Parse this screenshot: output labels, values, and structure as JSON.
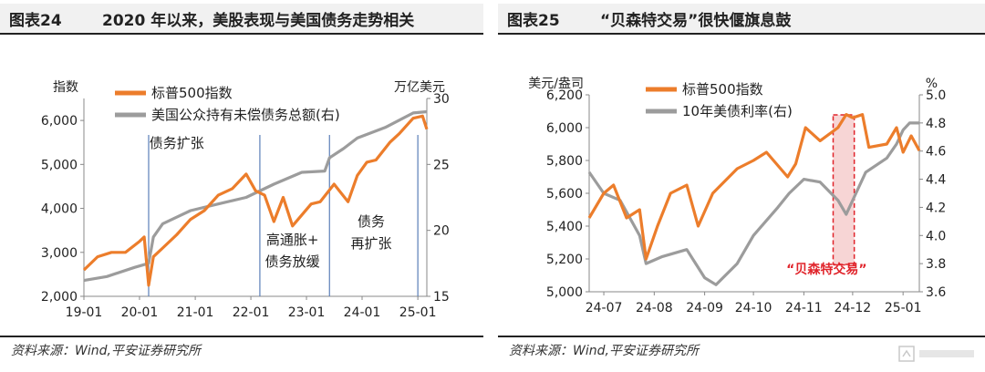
{
  "panels": [
    {
      "fig_no": "图表24",
      "title": "2020 年以来，美股表现与美国债务走势相关",
      "source": "资料来源：Wind,平安证券研究所"
    },
    {
      "fig_no": "图表25",
      "title": "“贝森特交易”很快偃旗息鼓",
      "source": "资料来源：Wind,平安证券研究所"
    }
  ],
  "colors": {
    "orange": "#ec7d2b",
    "gray": "#9c9c9c",
    "blue": "#5b7fb8",
    "red": "#e0242b",
    "highlight": "#f7d5d5"
  },
  "chart_data": [
    {
      "type": "line",
      "x_ticks": [
        "19-01",
        "20-01",
        "21-01",
        "22-01",
        "23-01",
        "24-01",
        "25-01"
      ],
      "x_range": [
        "2019-01",
        "2025-03"
      ],
      "ylabel_left": "指数",
      "ylabel_right": "万亿美元",
      "ylim_left": [
        2000,
        6500
      ],
      "yticks_left": [
        "2,000",
        "3,000",
        "4,000",
        "5,000",
        "6,000"
      ],
      "ylim_right": [
        15,
        30
      ],
      "yticks_right": [
        "15",
        "20",
        "25",
        "30"
      ],
      "legend": "top",
      "series": [
        {
          "name": "标普500指数",
          "axis": "left",
          "color": "#ec7d2b",
          "x": [
            "2019-01",
            "2019-04",
            "2019-07",
            "2019-10",
            "2020-01",
            "2020-02",
            "2020-03",
            "2020-04",
            "2020-06",
            "2020-09",
            "2020-12",
            "2021-03",
            "2021-06",
            "2021-09",
            "2021-12",
            "2022-02",
            "2022-04",
            "2022-06",
            "2022-08",
            "2022-10",
            "2022-12",
            "2023-02",
            "2023-04",
            "2023-07",
            "2023-10",
            "2023-12",
            "2024-02",
            "2024-04",
            "2024-07",
            "2024-09",
            "2024-12",
            "2025-02",
            "2025-03"
          ],
          "values": [
            2600,
            2900,
            3000,
            3000,
            3250,
            3350,
            2250,
            2900,
            3100,
            3400,
            3750,
            3950,
            4300,
            4450,
            4780,
            4400,
            4300,
            3700,
            4250,
            3600,
            3850,
            4100,
            4150,
            4550,
            4150,
            4750,
            5050,
            5100,
            5500,
            5700,
            6050,
            6100,
            5800
          ]
        },
        {
          "name": "美国公众持有未偿债务总额(右)",
          "axis": "right",
          "color": "#9c9c9c",
          "x": [
            "2019-01",
            "2019-06",
            "2019-12",
            "2020-03",
            "2020-04",
            "2020-06",
            "2020-09",
            "2020-12",
            "2021-06",
            "2021-12",
            "2022-06",
            "2022-12",
            "2023-05",
            "2023-06",
            "2023-09",
            "2023-12",
            "2024-06",
            "2024-12",
            "2025-03"
          ],
          "values": [
            16.2,
            16.5,
            17.2,
            17.5,
            19.5,
            20.5,
            21,
            21.5,
            22,
            22.5,
            23.5,
            24.4,
            24.5,
            25.5,
            26.2,
            27,
            27.8,
            28.9,
            29
          ]
        }
      ],
      "vlines": [
        "2020-03",
        "2022-03",
        "2023-06",
        "2025-01"
      ],
      "annotations": [
        "债务扩张",
        "高通胀+\n债务放缓",
        "债务\n再扩张"
      ]
    },
    {
      "type": "line",
      "x_ticks": [
        "24-07",
        "24-08",
        "24-09",
        "24-10",
        "24-11",
        "24-12",
        "25-01"
      ],
      "x_range": [
        "2024-07-01",
        "2025-01-20"
      ],
      "ylabel_left": "美元/盎司",
      "ylabel_right": "%",
      "ylim_left": [
        5000,
        6200
      ],
      "yticks_left": [
        "5,000",
        "5,200",
        "5,400",
        "5,600",
        "5,800",
        "6,000",
        "6,200"
      ],
      "ylim_right": [
        3.6,
        5.0
      ],
      "yticks_right": [
        "3.6",
        "3.8",
        "4.0",
        "4.2",
        "4.4",
        "4.6",
        "4.8",
        "5.0"
      ],
      "legend": "top",
      "series": [
        {
          "name": "标普500指数",
          "axis": "left",
          "color": "#ec7d2b",
          "x": [
            "2024-07-01",
            "2024-07-10",
            "2024-07-16",
            "2024-07-24",
            "2024-08-01",
            "2024-08-05",
            "2024-08-12",
            "2024-08-20",
            "2024-08-30",
            "2024-09-06",
            "2024-09-15",
            "2024-09-30",
            "2024-10-10",
            "2024-10-18",
            "2024-10-31",
            "2024-11-05",
            "2024-11-11",
            "2024-11-20",
            "2024-12-01",
            "2024-12-06",
            "2024-12-10",
            "2024-12-16",
            "2024-12-20",
            "2024-12-31",
            "2025-01-06",
            "2025-01-10",
            "2025-01-15",
            "2025-01-20"
          ],
          "values": [
            5450,
            5600,
            5650,
            5450,
            5500,
            5200,
            5400,
            5600,
            5650,
            5400,
            5600,
            5750,
            5800,
            5850,
            5700,
            5780,
            6000,
            5920,
            6000,
            6080,
            6060,
            6080,
            5880,
            5900,
            6000,
            5850,
            5950,
            5860
          ]
        },
        {
          "name": "10年美债利率(右)",
          "axis": "right",
          "color": "#9c9c9c",
          "x": [
            "2024-07-01",
            "2024-07-10",
            "2024-07-20",
            "2024-08-01",
            "2024-08-05",
            "2024-08-15",
            "2024-08-30",
            "2024-09-10",
            "2024-09-17",
            "2024-09-30",
            "2024-10-10",
            "2024-10-25",
            "2024-11-01",
            "2024-11-10",
            "2024-11-20",
            "2024-12-01",
            "2024-12-06",
            "2024-12-12",
            "2024-12-18",
            "2024-12-31",
            "2025-01-06",
            "2025-01-10",
            "2025-01-14",
            "2025-01-20"
          ],
          "values": [
            4.45,
            4.3,
            4.25,
            4.0,
            3.8,
            3.85,
            3.9,
            3.7,
            3.65,
            3.8,
            4.0,
            4.2,
            4.3,
            4.4,
            4.38,
            4.25,
            4.15,
            4.3,
            4.45,
            4.55,
            4.65,
            4.75,
            4.8,
            4.8
          ]
        }
      ],
      "highlight_range": [
        "2024-11-28",
        "2024-12-11"
      ],
      "annotation": "“贝森特交易”"
    }
  ]
}
